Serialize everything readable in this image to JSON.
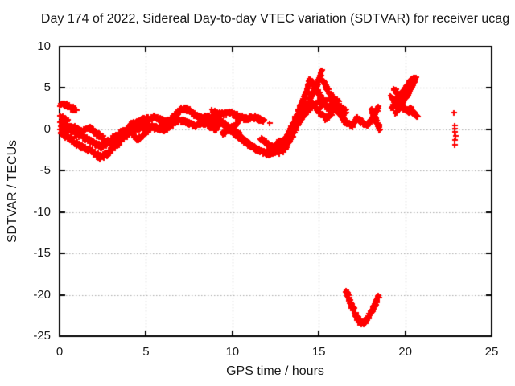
{
  "chart_data": {
    "type": "scatter",
    "title": "Day 174 of 2022, Sidereal Day-to-day VTEC variation (SDTVAR) for receiver ucag",
    "xlabel": "GPS time / hours",
    "ylabel": "SDTVAR / TECUs",
    "xlim": [
      0,
      25
    ],
    "ylim": [
      -25,
      10
    ],
    "xticks": [
      0,
      5,
      10,
      15,
      20,
      25
    ],
    "yticks": [
      10,
      5,
      0,
      -5,
      -10,
      -15,
      -20,
      -25
    ],
    "grid": true,
    "legend_position": "none",
    "marker": "plus",
    "marker_color": "#ff0000",
    "grid_color": "#aaaaaa",
    "axis_color": "#000000",
    "tracks": [
      {
        "w": 0.22,
        "pts": [
          [
            0.0,
            3.0
          ],
          [
            0.35,
            2.95
          ],
          [
            0.7,
            2.6
          ],
          [
            0.95,
            2.3
          ]
        ]
      },
      {
        "w": 0.18,
        "pts": [
          [
            0.0,
            1.7
          ],
          [
            0.2,
            1.35
          ],
          [
            0.4,
            1.05
          ]
        ]
      },
      {
        "w": 0.28,
        "pts": [
          [
            0.0,
            0.7
          ],
          [
            0.6,
            0.0
          ],
          [
            1.1,
            -0.6
          ],
          [
            1.6,
            -1.1
          ],
          [
            2.1,
            -1.7
          ],
          [
            2.45,
            -2.1
          ],
          [
            2.8,
            -1.5
          ],
          [
            3.2,
            -0.8
          ],
          [
            3.6,
            -0.3
          ],
          [
            4.0,
            0.3
          ],
          [
            4.3,
            0.6
          ]
        ]
      },
      {
        "w": 0.28,
        "pts": [
          [
            0.0,
            -0.3
          ],
          [
            0.5,
            -1.0
          ],
          [
            1.0,
            -1.7
          ],
          [
            1.5,
            -2.3
          ],
          [
            2.0,
            -2.9
          ],
          [
            2.35,
            -3.3
          ],
          [
            2.7,
            -3.0
          ],
          [
            3.1,
            -2.2
          ],
          [
            3.5,
            -1.3
          ],
          [
            3.9,
            -0.6
          ]
        ]
      },
      {
        "w": 0.22,
        "pts": [
          [
            0.1,
            0.1
          ],
          [
            0.7,
            0.4
          ],
          [
            1.2,
            -0.2
          ],
          [
            1.7,
            0.2
          ],
          [
            2.2,
            -0.6
          ],
          [
            2.7,
            -1.3
          ],
          [
            3.1,
            -1.7
          ],
          [
            3.5,
            -0.9
          ],
          [
            3.9,
            -0.2
          ]
        ]
      },
      {
        "w": 0.26,
        "pts": [
          [
            4.0,
            0.5
          ],
          [
            4.5,
            0.95
          ],
          [
            5.0,
            1.25
          ],
          [
            5.5,
            1.5
          ],
          [
            5.9,
            1.15
          ],
          [
            6.3,
            0.9
          ]
        ]
      },
      {
        "w": 0.26,
        "pts": [
          [
            4.1,
            -0.2
          ],
          [
            4.6,
            0.2
          ],
          [
            5.1,
            0.5
          ],
          [
            5.6,
            0.2
          ],
          [
            6.0,
            0.05
          ],
          [
            6.5,
            0.4
          ]
        ]
      },
      {
        "w": 0.2,
        "pts": [
          [
            4.2,
            -0.6
          ],
          [
            4.5,
            -1.2
          ],
          [
            4.8,
            -0.6
          ],
          [
            5.1,
            -0.1
          ]
        ]
      },
      {
        "w": 0.26,
        "pts": [
          [
            5.8,
            0.3
          ],
          [
            6.2,
            0.8
          ],
          [
            6.6,
            1.6
          ],
          [
            7.0,
            2.5
          ],
          [
            7.35,
            2.45
          ],
          [
            7.7,
            1.9
          ],
          [
            8.1,
            1.4
          ],
          [
            8.5,
            1.6
          ],
          [
            9.0,
            1.1
          ],
          [
            9.4,
            0.9
          ]
        ]
      },
      {
        "w": 0.26,
        "pts": [
          [
            6.3,
            0.5
          ],
          [
            6.8,
            1.1
          ],
          [
            7.3,
            0.9
          ],
          [
            7.8,
            0.5
          ],
          [
            8.2,
            0.9
          ],
          [
            8.7,
            0.4
          ],
          [
            9.1,
            0.1
          ]
        ]
      },
      {
        "w": 0.26,
        "pts": [
          [
            8.8,
            2.2
          ],
          [
            9.3,
            1.8
          ],
          [
            9.8,
            2.1
          ],
          [
            10.3,
            1.6
          ],
          [
            10.8,
            1.3
          ],
          [
            11.3,
            1.5
          ],
          [
            11.8,
            1.0
          ]
        ]
      },
      {
        "w": 0.22,
        "pts": [
          [
            9.0,
            1.4
          ],
          [
            9.5,
            0.6
          ],
          [
            10.0,
            -0.2
          ],
          [
            10.5,
            -1.1
          ],
          [
            11.0,
            -1.9
          ],
          [
            11.4,
            -2.4
          ]
        ]
      },
      {
        "w": 0.22,
        "pts": [
          [
            9.3,
            0.9
          ],
          [
            9.8,
            0.1
          ],
          [
            10.3,
            -0.8
          ],
          [
            10.8,
            -1.6
          ],
          [
            11.3,
            -2.3
          ],
          [
            11.8,
            -2.8
          ],
          [
            12.2,
            -2.9
          ],
          [
            12.6,
            -2.4
          ]
        ]
      },
      {
        "w": 0.18,
        "pts": [
          [
            9.4,
            -0.5
          ],
          [
            9.9,
            0.2
          ],
          [
            10.3,
            0.8
          ]
        ]
      },
      {
        "w": 0.18,
        "pts": [
          [
            9.5,
            0.7
          ],
          [
            10.0,
            0.0
          ],
          [
            10.4,
            -0.6
          ]
        ]
      },
      {
        "w": 0.22,
        "pts": [
          [
            11.6,
            -1.1
          ],
          [
            12.0,
            -1.7
          ],
          [
            12.4,
            -2.3
          ],
          [
            12.7,
            -2.7
          ]
        ]
      },
      {
        "w": 0.22,
        "pts": [
          [
            11.9,
            -2.9
          ],
          [
            12.3,
            -2.2
          ],
          [
            12.6,
            -1.6
          ],
          [
            12.8,
            -1.3
          ]
        ]
      },
      {
        "w": 0.28,
        "pts": [
          [
            12.75,
            -2.4
          ],
          [
            13.15,
            -0.7
          ],
          [
            13.6,
            1.3
          ],
          [
            14.05,
            3.5
          ],
          [
            14.3,
            4.9
          ],
          [
            14.45,
            6.0
          ]
        ]
      },
      {
        "w": 0.22,
        "pts": [
          [
            14.45,
            6.0
          ],
          [
            14.75,
            5.0
          ],
          [
            15.05,
            4.0
          ],
          [
            15.35,
            3.4
          ]
        ]
      },
      {
        "w": 0.28,
        "pts": [
          [
            12.9,
            -2.6
          ],
          [
            13.35,
            -1.0
          ],
          [
            13.8,
            0.8
          ],
          [
            14.25,
            2.8
          ],
          [
            14.7,
            4.7
          ],
          [
            15.0,
            6.2
          ],
          [
            15.12,
            7.0
          ]
        ]
      },
      {
        "w": 0.28,
        "pts": [
          [
            13.4,
            0.1
          ],
          [
            13.8,
            1.1
          ],
          [
            14.2,
            2.1
          ],
          [
            14.6,
            2.9
          ],
          [
            15.0,
            3.3
          ],
          [
            15.4,
            2.8
          ],
          [
            15.8,
            2.3
          ],
          [
            16.2,
            2.7
          ],
          [
            16.55,
            2.1
          ]
        ]
      },
      {
        "w": 0.22,
        "pts": [
          [
            15.2,
            5.9
          ],
          [
            15.5,
            4.7
          ],
          [
            15.8,
            3.8
          ],
          [
            16.1,
            3.3
          ]
        ]
      },
      {
        "w": 0.2,
        "pts": [
          [
            14.8,
            2.6
          ],
          [
            15.1,
            1.9
          ],
          [
            15.4,
            1.3
          ],
          [
            15.7,
            1.9
          ]
        ]
      },
      {
        "w": 0.22,
        "pts": [
          [
            15.6,
            3.8
          ],
          [
            16.0,
            2.5
          ],
          [
            16.45,
            1.0
          ],
          [
            16.9,
            0.5
          ],
          [
            17.2,
            1.4
          ],
          [
            17.5,
            0.8
          ],
          [
            17.85,
            0.6
          ]
        ]
      },
      {
        "w": 0.18,
        "pts": [
          [
            17.8,
            0.5
          ],
          [
            18.1,
            1.5
          ],
          [
            18.4,
            2.6
          ]
        ]
      },
      {
        "w": 0.18,
        "pts": [
          [
            18.0,
            2.4
          ],
          [
            18.25,
            1.2
          ],
          [
            18.5,
            0.0
          ]
        ]
      },
      {
        "w": 0.26,
        "pts": [
          [
            16.55,
            -19.6
          ],
          [
            16.75,
            -20.8
          ],
          [
            16.95,
            -21.8
          ],
          [
            17.15,
            -22.7
          ],
          [
            17.35,
            -23.3
          ],
          [
            17.6,
            -23.3
          ],
          [
            17.85,
            -22.6
          ],
          [
            18.1,
            -21.6
          ],
          [
            18.3,
            -20.7
          ],
          [
            18.42,
            -20.1
          ]
        ]
      },
      {
        "w": 0.22,
        "pts": [
          [
            19.4,
            2.0
          ],
          [
            19.8,
            3.2
          ],
          [
            20.15,
            4.5
          ],
          [
            20.45,
            5.7
          ],
          [
            20.6,
            6.3
          ]
        ]
      },
      {
        "w": 0.22,
        "pts": [
          [
            19.15,
            3.9
          ],
          [
            19.5,
            3.2
          ],
          [
            19.9,
            2.6
          ],
          [
            20.3,
            2.1
          ]
        ]
      },
      {
        "w": 0.22,
        "pts": [
          [
            19.2,
            2.6
          ],
          [
            19.5,
            3.6
          ],
          [
            19.8,
            4.6
          ],
          [
            20.15,
            5.5
          ],
          [
            20.45,
            6.2
          ]
        ]
      },
      {
        "w": 0.2,
        "pts": [
          [
            19.3,
            4.9
          ],
          [
            19.6,
            4.2
          ],
          [
            19.85,
            3.5
          ]
        ]
      },
      {
        "w": 0.18,
        "pts": [
          [
            20.25,
            2.6
          ],
          [
            20.45,
            2.0
          ],
          [
            20.65,
            1.6
          ]
        ]
      }
    ],
    "isolated_points": [
      [
        12.13,
        0.8
      ],
      [
        22.8,
        2.0
      ],
      [
        22.85,
        0.5
      ],
      [
        22.88,
        0.1
      ],
      [
        22.85,
        -0.35
      ],
      [
        22.9,
        -0.8
      ],
      [
        22.87,
        -1.25
      ],
      [
        22.88,
        -1.9
      ]
    ]
  }
}
